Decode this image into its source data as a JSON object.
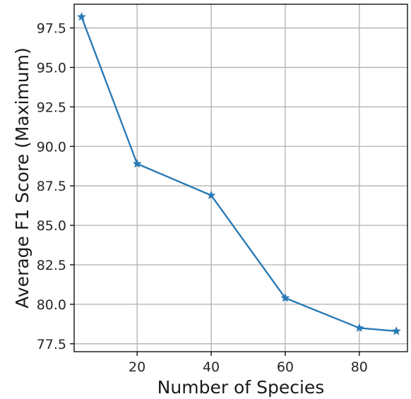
{
  "chart_data": {
    "type": "line",
    "title": "",
    "xlabel": "Number of Species",
    "ylabel": "Average F1 Score (Maximum)",
    "xlim": [
      3,
      93
    ],
    "ylim": [
      77.0,
      99.0
    ],
    "x_ticks": [
      20,
      40,
      60,
      80
    ],
    "y_ticks": [
      77.5,
      80.0,
      82.5,
      85.0,
      87.5,
      90.0,
      92.5,
      95.0,
      97.5
    ],
    "x_tick_labels": [
      "20",
      "40",
      "60",
      "80"
    ],
    "y_tick_labels": [
      "77.5",
      "80.0",
      "82.5",
      "85.0",
      "87.5",
      "90.0",
      "92.5",
      "95.0",
      "97.5"
    ],
    "grid": true,
    "series": [
      {
        "marker": "star",
        "color": "#2a7ab5",
        "x": [
          5,
          20,
          40,
          60,
          80,
          90
        ],
        "y": [
          98.2,
          88.9,
          86.9,
          80.4,
          78.5,
          78.3
        ]
      }
    ]
  }
}
